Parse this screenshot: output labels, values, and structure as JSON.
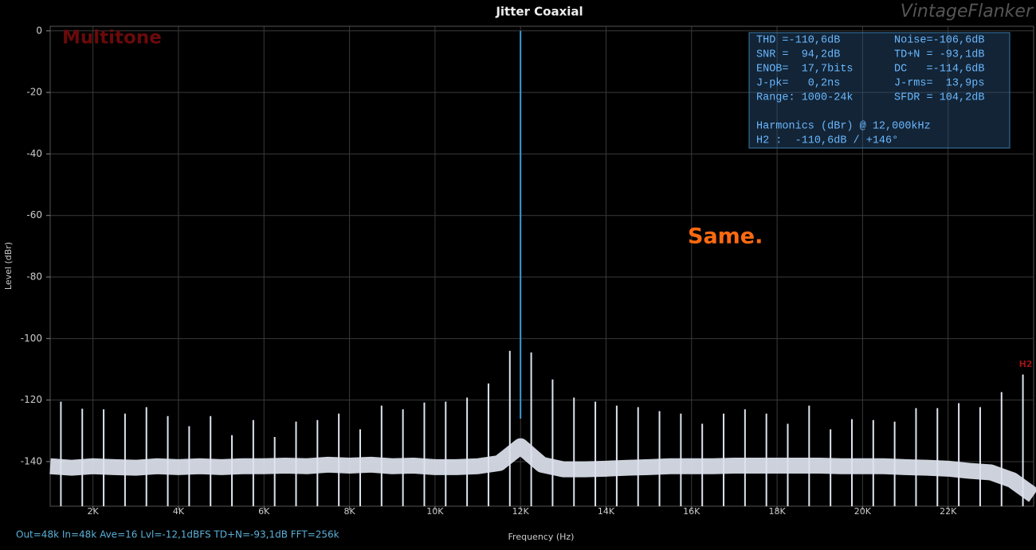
{
  "chart_data": {
    "type": "spectrum",
    "title": "Jitter Coaxial",
    "watermark": "VintageFlanker",
    "mode_label": "Multitone",
    "annotation": "Same.",
    "harmonic_label": "H2",
    "x_label": "Frequency (Hz)",
    "y_label": "Level (dBr)",
    "footer": "Out=48k In=48k Ave=16 Lvl=-12,1dBFS TD+N=-93,1dB FFT=256k",
    "info_box": {
      "rows": [
        [
          "THD =-110,6dB",
          "Noise=-106,6dB"
        ],
        [
          "SNR =  94,2dB",
          "TD+N = -93,1dB"
        ],
        [
          "ENOB=  17,7bits",
          "DC   =-114,6dB"
        ],
        [
          "J-pk=   0,2ns",
          "J-rms=  13,9ps"
        ],
        [
          "Range: 1000-24k",
          "SFDR = 104,2dB"
        ]
      ],
      "harmonics_title": "Harmonics (dBr) @ 12,000kHz",
      "harmonics": [
        "H2 :  -110,6dB / +146°"
      ]
    },
    "xlim": [
      1000,
      24000
    ],
    "ylim": [
      -154.5,
      1.5
    ],
    "xticks": [
      {
        "value": 2000,
        "label": "2K"
      },
      {
        "value": 4000,
        "label": "4K"
      },
      {
        "value": 6000,
        "label": "6K"
      },
      {
        "value": 8000,
        "label": "8K"
      },
      {
        "value": 10000,
        "label": "10K"
      },
      {
        "value": 12000,
        "label": "12K"
      },
      {
        "value": 14000,
        "label": "14K"
      },
      {
        "value": 16000,
        "label": "16K"
      },
      {
        "value": 18000,
        "label": "18K"
      },
      {
        "value": 20000,
        "label": "20K"
      },
      {
        "value": 22000,
        "label": "22K"
      }
    ],
    "yticks": [
      0,
      -20,
      -40,
      -60,
      -80,
      -100,
      -120,
      -140
    ],
    "grid": true,
    "tone": {
      "x": 12000,
      "value": 0,
      "color": "#3a9ad9"
    },
    "spurs": {
      "color": "#dde3ef",
      "x": [
        1250,
        1750,
        2250,
        2750,
        3250,
        3750,
        4250,
        4750,
        5250,
        5750,
        6250,
        6750,
        7250,
        7750,
        8250,
        8750,
        9250,
        9750,
        10250,
        10750,
        11250,
        11750,
        12250,
        12750,
        13250,
        13750,
        14250,
        14750,
        15250,
        15750,
        16250,
        16750,
        17250,
        17750,
        18250,
        18750,
        19250,
        19750,
        20250,
        20750,
        21250,
        21750,
        22250,
        22750,
        23250,
        23750
      ],
      "values": [
        -120.5,
        -122.8,
        -123,
        -124.4,
        -122.3,
        -125.2,
        -128.5,
        -125.2,
        -131.4,
        -126.5,
        -132,
        -127,
        -126.5,
        -124.4,
        -129.5,
        -121.8,
        -123,
        -120.8,
        -120.5,
        -119.2,
        -114.6,
        -104,
        -104.5,
        -113.3,
        -119.2,
        -120.5,
        -121.8,
        -122.3,
        -123.6,
        -124.4,
        -127.7,
        -124.4,
        -123,
        -124.4,
        -127.7,
        -121.8,
        -129.5,
        -126.2,
        -126.5,
        -127,
        -122.6,
        -122.6,
        -121,
        -122.3,
        -117.4,
        -111.7
      ]
    },
    "noise_floor": {
      "color": "#dde3ef",
      "x": [
        1000,
        1500,
        2000,
        2500,
        3000,
        3500,
        4000,
        4500,
        5000,
        5500,
        6000,
        6500,
        7000,
        7500,
        8000,
        8500,
        9000,
        9500,
        10000,
        10500,
        11000,
        11500,
        12000,
        12500,
        13000,
        13500,
        14000,
        14500,
        15000,
        15500,
        16000,
        16500,
        17000,
        17500,
        18000,
        18500,
        19000,
        19500,
        20000,
        20500,
        21000,
        21500,
        22000,
        22500,
        23000,
        23500,
        24000
      ],
      "values": [
        -141.5,
        -142,
        -141.5,
        -141.8,
        -142,
        -141.5,
        -141.8,
        -141.5,
        -141.8,
        -141.5,
        -141.5,
        -141.3,
        -141.5,
        -141,
        -141.3,
        -141,
        -141.5,
        -141.3,
        -141.8,
        -141.8,
        -141.5,
        -140.5,
        -135,
        -141,
        -142.5,
        -142.5,
        -142.3,
        -142,
        -141.8,
        -141.5,
        -141.5,
        -141.5,
        -141.3,
        -141.3,
        -141.3,
        -141.3,
        -141.3,
        -141.5,
        -141.5,
        -141.5,
        -141.8,
        -142,
        -142.3,
        -143,
        -143.5,
        -146,
        -151
      ]
    }
  }
}
